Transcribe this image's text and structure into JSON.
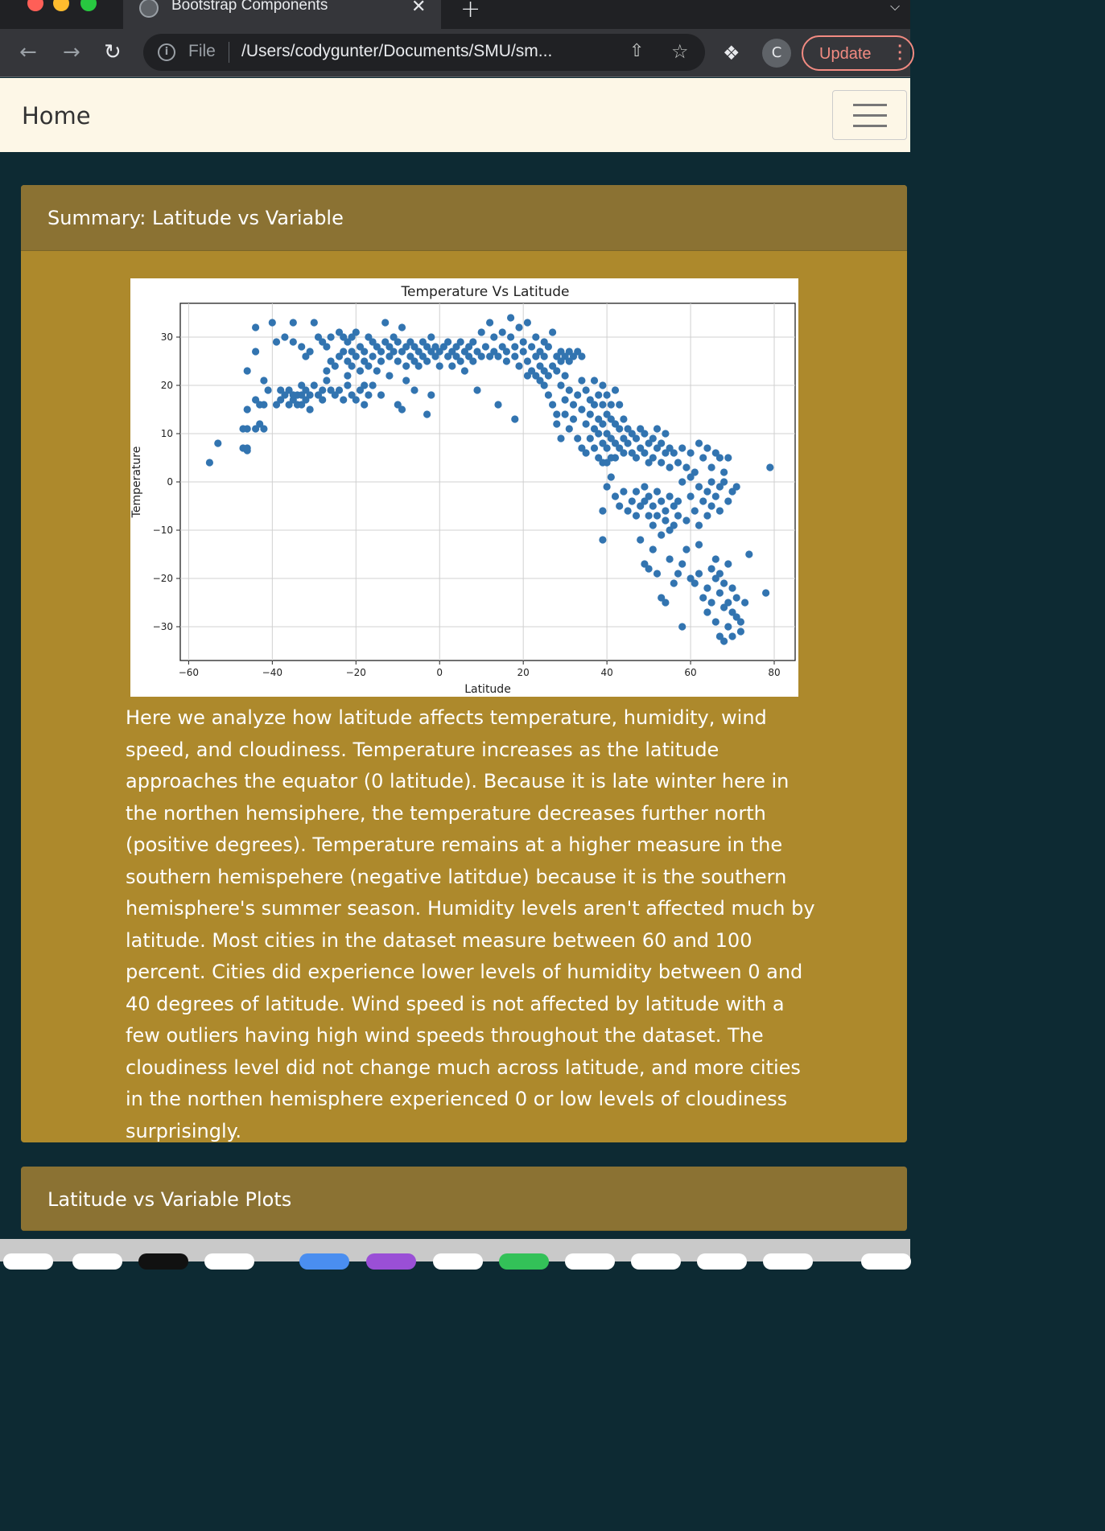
{
  "browser": {
    "tab_title": "Bootstrap Components",
    "tab_close": "✕",
    "new_tab": "+",
    "url_scheme": "File",
    "url": "/Users/codygunter/Documents/SMU/sm...",
    "profile_initial": "C",
    "update_label": "Update"
  },
  "navbar": {
    "brand": "Home"
  },
  "summary_card": {
    "title": "Summary: Latitude vs Variable",
    "text": "Here we analyze how latitude affects temperature, humidity, wind speed, and cloudiness. Temperature increases as the latitude approaches the equator (0 latitude). Because it is late winter here in the northen hemsiphere, the temperature decreases further north (positive degrees). Temperature remains at a higher measure in the southern hemispehere (negative latitdue) because it is the southern hemisphere's summer season. Humidity levels aren't affected much by latitude. Most cities in the dataset measure between 60 and 100 percent. Cities did experience lower levels of humidity between 0 and 40 degrees of latitude. Wind speed is not affected by latitude with a few outliers having high wind speeds throughout the dataset. The cloudiness level did not change much across latitude, and more cities in the northen hemisphere experienced 0 or low levels of cloudiness surprisingly."
  },
  "plots_card": {
    "title": "Latitude vs Variable Plots"
  },
  "chart_data": {
    "type": "scatter",
    "title": "Temperature Vs Latitude",
    "xlabel": "Latitude",
    "ylabel": "Temperature",
    "xlim": [
      -62,
      85
    ],
    "ylim": [
      -37,
      37
    ],
    "xticks": [
      -60,
      -40,
      -20,
      0,
      20,
      40,
      60,
      80
    ],
    "yticks": [
      -30,
      -20,
      -10,
      0,
      10,
      20,
      30
    ],
    "grid": true,
    "color": "#3274b0",
    "points": [
      [
        -55,
        4
      ],
      [
        -53,
        8
      ],
      [
        -47,
        7
      ],
      [
        -46,
        7
      ],
      [
        -46,
        6.5
      ],
      [
        -47,
        11
      ],
      [
        -46,
        11
      ],
      [
        -44,
        11
      ],
      [
        -43,
        12
      ],
      [
        -42,
        11
      ],
      [
        -46,
        15
      ],
      [
        -44,
        17
      ],
      [
        -43,
        16
      ],
      [
        -42,
        16
      ],
      [
        -41,
        19
      ],
      [
        -42,
        21
      ],
      [
        -46,
        23
      ],
      [
        -44,
        27
      ],
      [
        -44,
        32
      ],
      [
        -40,
        33
      ],
      [
        -39,
        29
      ],
      [
        -37,
        30
      ],
      [
        -35,
        29
      ],
      [
        -35,
        33
      ],
      [
        -33,
        28
      ],
      [
        -32,
        26
      ],
      [
        -31,
        27
      ],
      [
        -30,
        33
      ],
      [
        -29,
        30
      ],
      [
        -28,
        29
      ],
      [
        -27,
        28
      ],
      [
        -26,
        30
      ],
      [
        -24,
        31
      ],
      [
        -23,
        30
      ],
      [
        -22,
        29
      ],
      [
        -21,
        30
      ],
      [
        -20,
        31
      ],
      [
        -39,
        16
      ],
      [
        -38,
        17
      ],
      [
        -38,
        19
      ],
      [
        -37,
        18
      ],
      [
        -36,
        16
      ],
      [
        -36,
        19
      ],
      [
        -35,
        17
      ],
      [
        -35,
        18
      ],
      [
        -34,
        18
      ],
      [
        -34,
        16
      ],
      [
        -33,
        16
      ],
      [
        -33,
        18
      ],
      [
        -33,
        20
      ],
      [
        -32,
        17
      ],
      [
        -32,
        19
      ],
      [
        -31,
        15
      ],
      [
        -31,
        18
      ],
      [
        -30,
        20
      ],
      [
        -29,
        18
      ],
      [
        -28,
        17
      ],
      [
        -28,
        19
      ],
      [
        -27,
        21
      ],
      [
        -26,
        19
      ],
      [
        -25,
        18
      ],
      [
        -24,
        19
      ],
      [
        -23,
        17
      ],
      [
        -22,
        20
      ],
      [
        -21,
        18
      ],
      [
        -20,
        17
      ],
      [
        -19,
        19
      ],
      [
        -18,
        20
      ],
      [
        -18,
        16
      ],
      [
        -17,
        18
      ],
      [
        -16,
        20
      ],
      [
        -14,
        18
      ],
      [
        -12,
        22
      ],
      [
        -10,
        16
      ],
      [
        -9,
        15
      ],
      [
        -8,
        21
      ],
      [
        -6,
        19
      ],
      [
        -3,
        14
      ],
      [
        -2,
        18
      ],
      [
        -27,
        23
      ],
      [
        -26,
        25
      ],
      [
        -25,
        24
      ],
      [
        -24,
        26
      ],
      [
        -23,
        27
      ],
      [
        -22,
        25
      ],
      [
        -22,
        22
      ],
      [
        -21,
        24
      ],
      [
        -21,
        27
      ],
      [
        -20,
        26
      ],
      [
        -19,
        28
      ],
      [
        -19,
        23
      ],
      [
        -18,
        25
      ],
      [
        -18,
        27
      ],
      [
        -17,
        30
      ],
      [
        -17,
        24
      ],
      [
        -16,
        29
      ],
      [
        -16,
        26
      ],
      [
        -15,
        28
      ],
      [
        -15,
        23
      ],
      [
        -14,
        27
      ],
      [
        -14,
        25
      ],
      [
        -13,
        29
      ],
      [
        -13,
        33
      ],
      [
        -12,
        26
      ],
      [
        -12,
        28
      ],
      [
        -11,
        30
      ],
      [
        -11,
        27
      ],
      [
        -10,
        29
      ],
      [
        -10,
        25
      ],
      [
        -9,
        32
      ],
      [
        -9,
        27
      ],
      [
        -8,
        28
      ],
      [
        -8,
        24
      ],
      [
        -7,
        26
      ],
      [
        -7,
        29
      ],
      [
        -6,
        25
      ],
      [
        -6,
        28
      ],
      [
        -5,
        27
      ],
      [
        -5,
        24
      ],
      [
        -4,
        29
      ],
      [
        -4,
        26
      ],
      [
        -3,
        28
      ],
      [
        -3,
        25
      ],
      [
        -2,
        27
      ],
      [
        -2,
        30
      ],
      [
        -1,
        26
      ],
      [
        -1,
        28
      ],
      [
        0,
        27
      ],
      [
        0,
        24
      ],
      [
        1,
        28
      ],
      [
        2,
        26
      ],
      [
        2,
        29
      ],
      [
        3,
        27
      ],
      [
        3,
        24
      ],
      [
        4,
        26
      ],
      [
        4,
        28
      ],
      [
        5,
        25
      ],
      [
        5,
        29
      ],
      [
        6,
        27
      ],
      [
        6,
        23
      ],
      [
        7,
        26
      ],
      [
        7,
        28
      ],
      [
        8,
        25
      ],
      [
        8,
        29
      ],
      [
        9,
        27
      ],
      [
        10,
        26
      ],
      [
        10,
        31
      ],
      [
        11,
        28
      ],
      [
        12,
        26
      ],
      [
        12,
        33
      ],
      [
        13,
        27
      ],
      [
        13,
        30
      ],
      [
        14,
        26
      ],
      [
        15,
        28
      ],
      [
        15,
        31
      ],
      [
        16,
        27
      ],
      [
        16,
        25
      ],
      [
        17,
        30
      ],
      [
        17,
        34
      ],
      [
        18,
        26
      ],
      [
        18,
        28
      ],
      [
        19,
        32
      ],
      [
        19,
        24
      ],
      [
        20,
        29
      ],
      [
        20,
        27
      ],
      [
        21,
        25
      ],
      [
        21,
        33
      ],
      [
        22,
        28
      ],
      [
        22,
        23
      ],
      [
        23,
        26
      ],
      [
        23,
        30
      ],
      [
        24,
        24
      ],
      [
        24,
        27
      ],
      [
        25,
        29
      ],
      [
        25,
        26
      ],
      [
        26,
        22
      ],
      [
        26,
        28
      ],
      [
        27,
        24
      ],
      [
        27,
        31
      ],
      [
        28,
        26
      ],
      [
        28,
        23
      ],
      [
        29,
        27
      ],
      [
        29,
        25
      ],
      [
        30,
        26
      ],
      [
        30,
        22
      ],
      [
        31,
        27
      ],
      [
        31,
        25
      ],
      [
        32,
        26
      ],
      [
        33,
        27
      ],
      [
        34,
        26
      ],
      [
        9,
        19
      ],
      [
        14,
        16
      ],
      [
        18,
        13
      ],
      [
        21,
        22
      ],
      [
        23,
        22
      ],
      [
        24,
        21
      ],
      [
        25,
        23
      ],
      [
        25,
        20
      ],
      [
        26,
        18
      ],
      [
        27,
        16
      ],
      [
        28,
        14
      ],
      [
        28,
        12
      ],
      [
        29,
        20
      ],
      [
        29,
        9
      ],
      [
        30,
        17
      ],
      [
        30,
        14
      ],
      [
        31,
        19
      ],
      [
        31,
        11
      ],
      [
        32,
        16
      ],
      [
        32,
        13
      ],
      [
        33,
        18
      ],
      [
        33,
        9
      ],
      [
        34,
        15
      ],
      [
        34,
        21
      ],
      [
        34,
        7
      ],
      [
        35,
        19
      ],
      [
        35,
        12
      ],
      [
        35,
        6
      ],
      [
        36,
        17
      ],
      [
        36,
        14
      ],
      [
        36,
        9
      ],
      [
        37,
        21
      ],
      [
        37,
        16
      ],
      [
        37,
        11
      ],
      [
        37,
        7
      ],
      [
        38,
        18
      ],
      [
        38,
        13
      ],
      [
        38,
        10
      ],
      [
        38,
        5
      ],
      [
        39,
        20
      ],
      [
        39,
        16
      ],
      [
        39,
        12
      ],
      [
        39,
        8
      ],
      [
        39,
        4
      ],
      [
        40,
        18
      ],
      [
        40,
        14
      ],
      [
        40,
        10
      ],
      [
        40,
        7
      ],
      [
        40,
        4
      ],
      [
        41,
        16
      ],
      [
        41,
        13
      ],
      [
        41,
        9
      ],
      [
        41,
        5
      ],
      [
        42,
        19
      ],
      [
        42,
        12
      ],
      [
        42,
        8
      ],
      [
        42,
        5
      ],
      [
        43,
        16
      ],
      [
        43,
        11
      ],
      [
        43,
        7
      ],
      [
        44,
        13
      ],
      [
        44,
        9
      ],
      [
        44,
        6
      ],
      [
        45,
        11
      ],
      [
        45,
        8
      ],
      [
        46,
        10
      ],
      [
        46,
        6
      ],
      [
        47,
        9
      ],
      [
        47,
        5
      ],
      [
        48,
        11
      ],
      [
        48,
        7
      ],
      [
        49,
        10
      ],
      [
        49,
        6
      ],
      [
        50,
        8
      ],
      [
        50,
        4
      ],
      [
        51,
        9
      ],
      [
        51,
        5
      ],
      [
        52,
        7
      ],
      [
        52,
        11
      ],
      [
        53,
        8
      ],
      [
        53,
        4
      ],
      [
        54,
        10
      ],
      [
        54,
        6
      ],
      [
        55,
        7
      ],
      [
        55,
        3
      ],
      [
        56,
        6
      ],
      [
        57,
        4
      ],
      [
        58,
        7
      ],
      [
        59,
        3
      ],
      [
        60,
        6
      ],
      [
        61,
        2
      ],
      [
        62,
        8
      ],
      [
        63,
        5
      ],
      [
        64,
        7
      ],
      [
        65,
        3
      ],
      [
        66,
        6
      ],
      [
        67,
        5
      ],
      [
        68,
        2
      ],
      [
        69,
        5
      ],
      [
        39,
        -6
      ],
      [
        39,
        -12
      ],
      [
        40,
        -1
      ],
      [
        41,
        1
      ],
      [
        42,
        -3
      ],
      [
        43,
        -5
      ],
      [
        44,
        -2
      ],
      [
        45,
        -6
      ],
      [
        46,
        -4
      ],
      [
        47,
        -2
      ],
      [
        47,
        -7
      ],
      [
        48,
        -5
      ],
      [
        49,
        -1
      ],
      [
        49,
        -4
      ],
      [
        50,
        -3
      ],
      [
        50,
        -7
      ],
      [
        51,
        -5
      ],
      [
        51,
        -9
      ],
      [
        52,
        -2
      ],
      [
        52,
        -7
      ],
      [
        53,
        -4
      ],
      [
        53,
        -11
      ],
      [
        54,
        -8
      ],
      [
        54,
        -6
      ],
      [
        55,
        -10
      ],
      [
        55,
        -3
      ],
      [
        56,
        -5
      ],
      [
        56,
        -9
      ],
      [
        57,
        -7
      ],
      [
        57,
        -4
      ],
      [
        58,
        0
      ],
      [
        59,
        -8
      ],
      [
        60,
        1
      ],
      [
        60,
        -3
      ],
      [
        61,
        -6
      ],
      [
        62,
        -1
      ],
      [
        62,
        -9
      ],
      [
        63,
        -4
      ],
      [
        64,
        -7
      ],
      [
        64,
        -2
      ],
      [
        65,
        -5
      ],
      [
        65,
        0
      ],
      [
        66,
        -3
      ],
      [
        67,
        -6
      ],
      [
        67,
        -1
      ],
      [
        68,
        0
      ],
      [
        69,
        -4
      ],
      [
        70,
        -2
      ],
      [
        71,
        -1
      ],
      [
        48,
        -12
      ],
      [
        49,
        -17
      ],
      [
        50,
        -18
      ],
      [
        51,
        -14
      ],
      [
        52,
        -19
      ],
      [
        53,
        -24
      ],
      [
        54,
        -25
      ],
      [
        55,
        -16
      ],
      [
        56,
        -21
      ],
      [
        57,
        -19
      ],
      [
        58,
        -17
      ],
      [
        58,
        -30
      ],
      [
        59,
        -14
      ],
      [
        60,
        -20
      ],
      [
        61,
        -21
      ],
      [
        62,
        -19
      ],
      [
        62,
        -13
      ],
      [
        63,
        -24
      ],
      [
        64,
        -22
      ],
      [
        64,
        -27
      ],
      [
        65,
        -18
      ],
      [
        65,
        -25
      ],
      [
        66,
        -20
      ],
      [
        66,
        -16
      ],
      [
        66,
        -29
      ],
      [
        67,
        -23
      ],
      [
        67,
        -19
      ],
      [
        67,
        -32
      ],
      [
        68,
        -26
      ],
      [
        68,
        -21
      ],
      [
        68,
        -33
      ],
      [
        69,
        -25
      ],
      [
        69,
        -17
      ],
      [
        69,
        -30
      ],
      [
        70,
        -27
      ],
      [
        70,
        -22
      ],
      [
        70,
        -32
      ],
      [
        71,
        -24
      ],
      [
        71,
        -28
      ],
      [
        72,
        -29
      ],
      [
        72,
        -31
      ],
      [
        73,
        -25
      ],
      [
        74,
        -15
      ],
      [
        78,
        -23
      ],
      [
        79,
        3
      ]
    ]
  }
}
